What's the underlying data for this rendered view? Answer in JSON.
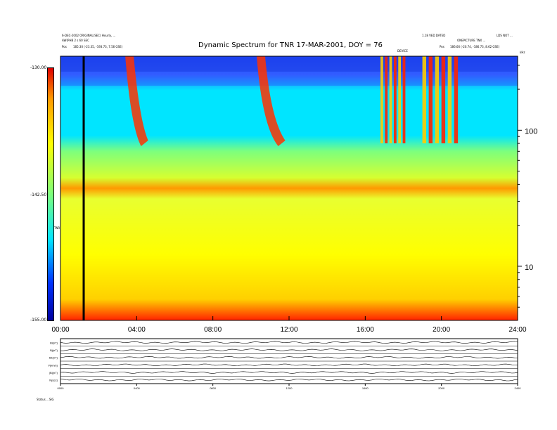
{
  "header": {
    "title": "Dynamic Spectrum for TNR 17-MAR-2001, DOY = 76",
    "left_line1": "6-DEC-2002 ORIGINAL(SEC) Hourly, ...",
    "left_line2": "AW(PHB 2 s 60 SEC",
    "left_pos_label": "Pos",
    "left_pos_value": "185.30 (-23.35, -193.73, 7.56 GSE)",
    "right_line1": "1.18 VED DATED",
    "right_line2": "LDS NOT ...",
    "right_line3": "ONEPICTURE TNX ...",
    "right_pos_label": "Pos",
    "right_pos_value": "186.66 (-20.74, -186.73, 8.62 GSE)",
    "marker_label": "DEVICE"
  },
  "chart_data": {
    "type": "heatmap",
    "title": "Dynamic Spectrum for TNR 17-MAR-2001, DOY = 76",
    "x_ticks": [
      "00:00",
      "04:00",
      "08:00",
      "12:00",
      "16:00",
      "20:00",
      "24:00"
    ],
    "xlim_hours": [
      0,
      24
    ],
    "y_axis_label": "kHz",
    "y_scale": "log",
    "y_ticks": [
      {
        "value": 100,
        "label": "100"
      },
      {
        "value": 10,
        "label": "10"
      }
    ],
    "ylim": [
      4,
      350
    ],
    "colorbar": {
      "label": "TNR",
      "ticks": [
        "-130.00",
        "-142.50",
        "-155.00"
      ],
      "range": [
        -155,
        -130
      ]
    },
    "colormap": [
      "#0000a0",
      "#0033ff",
      "#00e5ff",
      "#7dff7d",
      "#ffff00",
      "#ff9900",
      "#e00000"
    ],
    "grid": false,
    "features": [
      {
        "name": "type III burst",
        "t_start_hours": 3.4,
        "t_end_hours": 4.6
      },
      {
        "name": "type III burst",
        "t_start_hours": 10.3,
        "t_end_hours": 11.8
      },
      {
        "name": "bursts",
        "t_start_hours": 16.8,
        "t_end_hours": 18.2
      },
      {
        "name": "bursts",
        "t_start_hours": 19.0,
        "t_end_hours": 21.0
      }
    ],
    "marker_line_hours": 1.2
  },
  "lower_panels": {
    "labels": [
      "Bi(nT)",
      "Bj(nT)",
      "Bk(nT)",
      "V(km/s)",
      "|B|(nT)",
      "Np(cc)"
    ],
    "x_ticks": [
      "0000",
      "0400",
      "0800",
      "1200",
      "1600",
      "2000",
      "2400"
    ],
    "footer": "Status ...SIG"
  }
}
